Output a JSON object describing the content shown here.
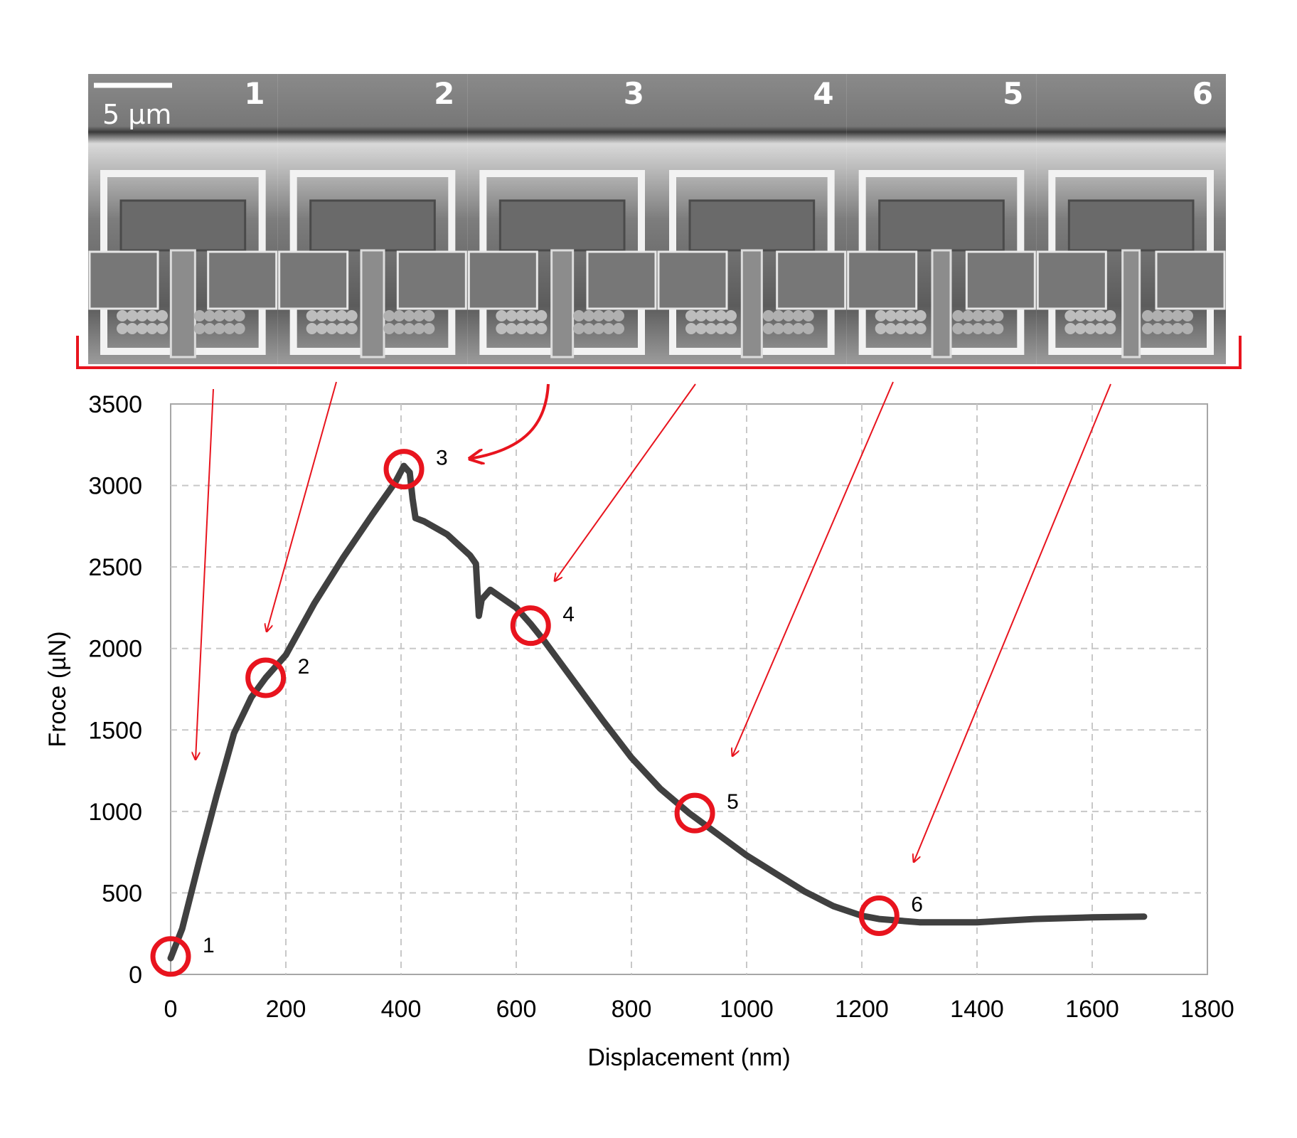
{
  "chart_data": {
    "type": "line",
    "title": "",
    "xlabel": "Displacement (nm)",
    "ylabel": "Froce (µN)",
    "xlim": [
      0,
      1800
    ],
    "ylim": [
      0,
      3500
    ],
    "xticks": [
      "0",
      "200",
      "400",
      "600",
      "800",
      "1000",
      "1200",
      "1400",
      "1600",
      "1800"
    ],
    "yticks": [
      "0",
      "500",
      "1000",
      "1500",
      "2000",
      "2500",
      "3000",
      "3500"
    ],
    "grid": true,
    "series": [
      {
        "color": "#404040",
        "x": [
          0,
          20,
          50,
          80,
          110,
          140,
          165,
          200,
          250,
          300,
          350,
          390,
          405,
          415,
          420,
          425,
          440,
          480,
          520,
          530,
          535,
          540,
          555,
          600,
          625,
          650,
          700,
          750,
          800,
          850,
          900,
          950,
          1000,
          1050,
          1100,
          1150,
          1200,
          1230,
          1300,
          1400,
          1500,
          1600,
          1690
        ],
        "y": [
          100,
          280,
          700,
          1100,
          1480,
          1700,
          1820,
          1960,
          2280,
          2560,
          2820,
          3020,
          3120,
          3080,
          2920,
          2800,
          2780,
          2700,
          2570,
          2520,
          2200,
          2300,
          2360,
          2250,
          2150,
          2040,
          1800,
          1560,
          1330,
          1140,
          990,
          860,
          730,
          620,
          510,
          420,
          360,
          340,
          320,
          320,
          340,
          350,
          355
        ]
      }
    ],
    "markers": [
      {
        "label": "1",
        "x": 0,
        "y": 110
      },
      {
        "label": "2",
        "x": 165,
        "y": 1820
      },
      {
        "label": "3",
        "x": 405,
        "y": 3100
      },
      {
        "label": "4",
        "x": 625,
        "y": 2140
      },
      {
        "label": "5",
        "x": 910,
        "y": 990
      },
      {
        "label": "6",
        "x": 1230,
        "y": 360
      }
    ]
  },
  "micrographs": {
    "scale_bar": "5 µm",
    "frames": [
      "1",
      "2",
      "3",
      "4",
      "5",
      "6"
    ]
  },
  "colors": {
    "highlight": "#e8141e",
    "curve": "#404040",
    "grid": "#c8c8c8"
  }
}
